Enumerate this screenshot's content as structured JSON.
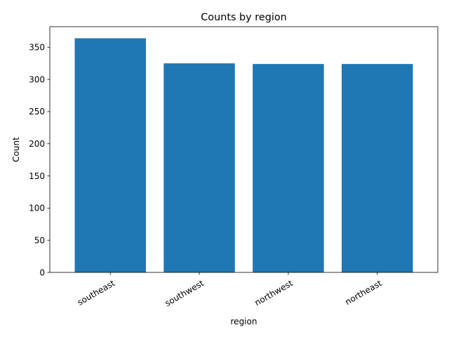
{
  "chart_data": {
    "type": "bar",
    "title": "Counts by region",
    "xlabel": "region",
    "ylabel": "Count",
    "categories": [
      "southeast",
      "southwest",
      "northwest",
      "northeast"
    ],
    "values": [
      364,
      325,
      324,
      324
    ],
    "ylim": [
      0,
      382
    ],
    "yticks": [
      0,
      50,
      100,
      150,
      200,
      250,
      300,
      350
    ],
    "grid": false,
    "legend": "none",
    "bar_color": "#1f77b4",
    "xtick_rotation_deg": 30
  }
}
